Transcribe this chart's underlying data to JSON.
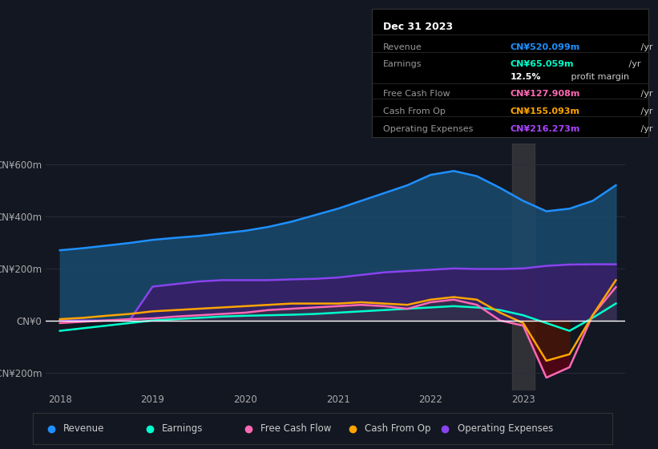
{
  "bg_color": "#131722",
  "title_box": {
    "date": "Dec 31 2023",
    "rows": [
      {
        "label": "Revenue",
        "value": "CN¥520.099m",
        "value_color": "#1e90ff",
        "suffix": " /yr"
      },
      {
        "label": "Earnings",
        "value": "CN¥65.059m",
        "value_color": "#00ffcc",
        "suffix": " /yr"
      },
      {
        "label": "",
        "value": "12.5%",
        "value_color": "#ffffff",
        "suffix": " profit margin"
      },
      {
        "label": "Free Cash Flow",
        "value": "CN¥127.908m",
        "value_color": "#ff69b4",
        "suffix": " /yr"
      },
      {
        "label": "Cash From Op",
        "value": "CN¥155.093m",
        "value_color": "#ffa500",
        "suffix": " /yr"
      },
      {
        "label": "Operating Expenses",
        "value": "CN¥216.273m",
        "value_color": "#aa44ff",
        "suffix": " /yr"
      }
    ]
  },
  "years": [
    2018.0,
    2018.25,
    2018.5,
    2018.75,
    2019.0,
    2019.25,
    2019.5,
    2019.75,
    2020.0,
    2020.25,
    2020.5,
    2020.75,
    2021.0,
    2021.25,
    2021.5,
    2021.75,
    2022.0,
    2022.25,
    2022.5,
    2022.75,
    2023.0,
    2023.25,
    2023.5,
    2023.75,
    2024.0
  ],
  "revenue": [
    270,
    278,
    288,
    298,
    310,
    318,
    325,
    335,
    345,
    360,
    380,
    405,
    430,
    460,
    490,
    520,
    560,
    575,
    555,
    510,
    460,
    420,
    430,
    460,
    520
  ],
  "earnings": [
    -40,
    -30,
    -20,
    -10,
    0,
    5,
    10,
    15,
    18,
    20,
    22,
    25,
    30,
    35,
    40,
    45,
    50,
    55,
    50,
    40,
    20,
    -10,
    -40,
    10,
    65
  ],
  "free_cf": [
    -10,
    -5,
    0,
    5,
    8,
    15,
    20,
    25,
    30,
    40,
    45,
    50,
    55,
    60,
    55,
    45,
    70,
    80,
    60,
    0,
    -20,
    -220,
    -180,
    20,
    128
  ],
  "cash_from_op": [
    5,
    10,
    18,
    25,
    35,
    40,
    45,
    50,
    55,
    60,
    65,
    65,
    65,
    70,
    65,
    60,
    80,
    90,
    80,
    30,
    -10,
    -155,
    -130,
    20,
    155
  ],
  "op_expenses": [
    0,
    0,
    0,
    0,
    130,
    140,
    150,
    155,
    155,
    155,
    158,
    160,
    165,
    175,
    185,
    190,
    195,
    200,
    198,
    198,
    200,
    210,
    215,
    216,
    216
  ],
  "y_ticks": [
    -200,
    0,
    200,
    400,
    600
  ],
  "y_labels": [
    "-CN¥200m",
    "CN¥0",
    "CN¥200m",
    "CN¥400m",
    "CN¥600m"
  ],
  "ylim": [
    -270,
    680
  ],
  "x_ticks": [
    2018,
    2019,
    2020,
    2021,
    2022,
    2023
  ],
  "revenue_color": "#1e90ff",
  "earnings_color": "#00ffcc",
  "free_cf_color": "#ff69b4",
  "cash_from_op_color": "#ffa500",
  "op_expenses_color": "#8844ee",
  "legend_items": [
    {
      "label": "Revenue",
      "color": "#1e90ff"
    },
    {
      "label": "Earnings",
      "color": "#00ffcc"
    },
    {
      "label": "Free Cash Flow",
      "color": "#ff69b4"
    },
    {
      "label": "Cash From Op",
      "color": "#ffa500"
    },
    {
      "label": "Operating Expenses",
      "color": "#8844ee"
    }
  ]
}
